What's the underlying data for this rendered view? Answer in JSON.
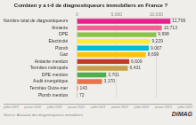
{
  "chart_data": {
    "type": "bar",
    "orientation": "horizontal",
    "title": "Combien y a t-il de diagnostiqueurs immobiliers en France ?",
    "categories": [
      "Nombre total de diagnostiqueurs",
      "Amiante",
      "DPE",
      "Electricité",
      "Plomb",
      "Gaz",
      "Amiante mention",
      "Termites métropole",
      "DPE mention",
      "Audit énergétique",
      "Termites Outre-mer",
      "Plomb mention"
    ],
    "values": [
      11795,
      10713,
      9998,
      9229,
      9067,
      8699,
      6609,
      6431,
      3701,
      3170,
      143,
      72
    ],
    "value_labels": [
      "11,795",
      "10,713",
      "9,998",
      "9,229",
      "9,067",
      "8,699",
      "6,609",
      "6,431",
      "3,701",
      "3,170",
      "143",
      "72"
    ],
    "data_labels": true,
    "colors": [
      "#e91e8c",
      "#f06292",
      "#8bc34a",
      "#ffeb3b",
      "#00bcd4",
      "#ffc107",
      "#c0392b",
      "#c8a04a",
      "#4caf50",
      "#e8734a",
      "#e8734a",
      "#e8734a"
    ],
    "xlim": [
      0,
      13000
    ],
    "xticks": [
      0,
      {
        "value": 5000,
        "label": "5,000"
      },
      {
        "value": 10000,
        "label": "10,000"
      }
    ],
    "grid": true,
    "annotations": [
      [
        "juillet 2019",
        "janvier 2020",
        "juillet 2020",
        "janvier 2021",
        "juillet 2021",
        "janvier 2022",
        "juillet 2022",
        "janvier 2023",
        "juillet 2023"
      ],
      "Source: Annuaire des diagnostiqueurs immobiliers",
      "DiMAG"
    ]
  }
}
